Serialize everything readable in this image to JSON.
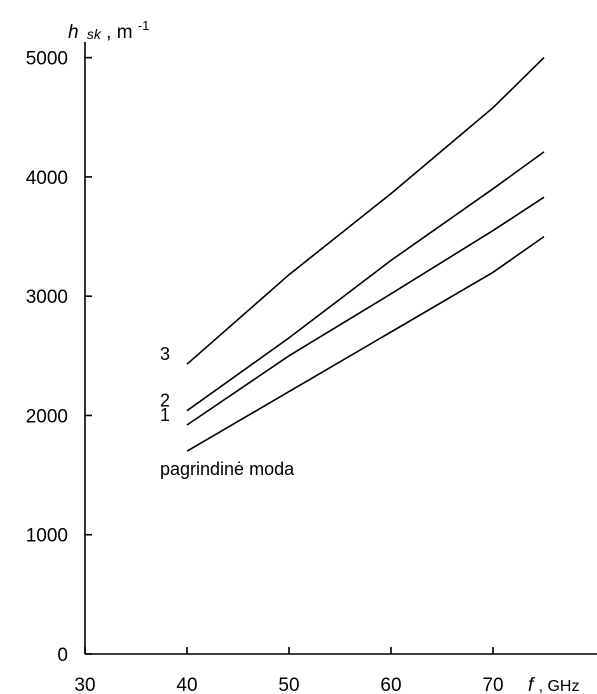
{
  "chart_data": {
    "type": "line",
    "title": "",
    "ylabel": {
      "symbol": "h",
      "subscript": "sk",
      "unit": "m",
      "unit_exp": "-1"
    },
    "xlabel": {
      "symbol": "f",
      "unit": "GHz"
    },
    "xlim": [
      30,
      80
    ],
    "ylim": [
      0,
      5000
    ],
    "xticks": [
      30,
      40,
      50,
      60,
      70
    ],
    "yticks": [
      0,
      1000,
      2000,
      3000,
      4000,
      5000
    ],
    "grid": false,
    "series": [
      {
        "name": "pagrindinė moda",
        "x": [
          40,
          50,
          60,
          70,
          75
        ],
        "y": [
          1700,
          2200,
          2700,
          3200,
          3500
        ]
      },
      {
        "name": "1",
        "x": [
          40,
          50,
          60,
          70,
          75
        ],
        "y": [
          1920,
          2500,
          3020,
          3550,
          3830
        ]
      },
      {
        "name": "2",
        "x": [
          40,
          50,
          60,
          70,
          75
        ],
        "y": [
          2040,
          2650,
          3300,
          3900,
          4210
        ]
      },
      {
        "name": "3",
        "x": [
          40,
          50,
          60,
          70,
          75
        ],
        "y": [
          2430,
          3180,
          3860,
          4580,
          5000
        ]
      }
    ]
  }
}
